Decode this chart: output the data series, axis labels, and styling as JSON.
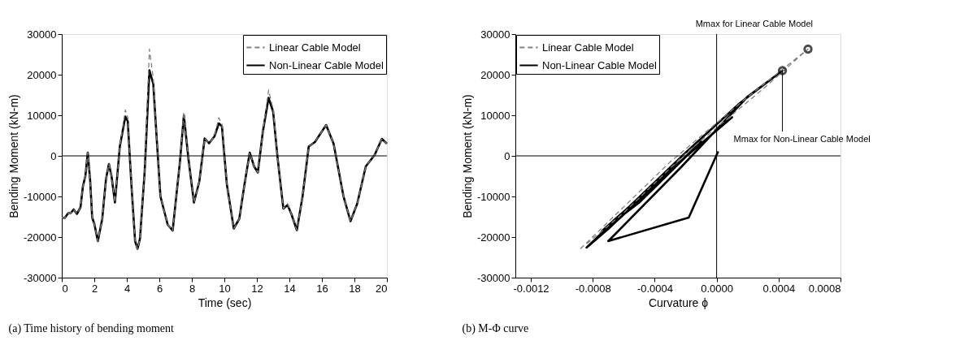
{
  "chart_data": [
    {
      "type": "line",
      "title": "(a) Time history of bending moment",
      "xlabel": "Time (sec)",
      "ylabel": "Bending Moment (kN-m)",
      "xlim": [
        0,
        20
      ],
      "xticks": [
        0,
        2,
        4,
        6,
        8,
        10,
        12,
        14,
        16,
        18,
        20
      ],
      "ylim": [
        -30000,
        30000
      ],
      "yticks": [
        -30000,
        -20000,
        -10000,
        0,
        10000,
        20000,
        30000
      ],
      "grid": false,
      "legend": "top right",
      "ref_lines": [
        {
          "axis": "y",
          "value": 0,
          "color": "#000000"
        }
      ],
      "series": [
        {
          "name": "Linear Cable Model",
          "color": "#808080",
          "line_style": "dashed",
          "x": [
            0,
            0.18,
            0.4,
            0.55,
            0.73,
            0.93,
            1.15,
            1.3,
            1.45,
            1.6,
            1.75,
            1.87,
            2.0,
            2.22,
            2.49,
            2.72,
            2.9,
            3.06,
            3.27,
            3.57,
            3.91,
            4.06,
            4.28,
            4.51,
            4.66,
            4.81,
            5.1,
            5.39,
            5.63,
            5.85,
            6.07,
            6.3,
            6.52,
            6.82,
            7.27,
            7.51,
            7.79,
            8.13,
            8.46,
            8.79,
            9.06,
            9.39,
            9.66,
            9.85,
            10.15,
            10.58,
            10.92,
            11.22,
            11.56,
            11.83,
            12.06,
            12.37,
            12.72,
            13.0,
            13.28,
            13.63,
            13.89,
            14.12,
            14.46,
            14.81,
            15.19,
            15.57,
            16.26,
            16.72,
            17.33,
            17.76,
            18.17,
            18.7,
            19.24,
            19.69,
            20.0
          ],
          "values": [
            -15200,
            -15300,
            -14100,
            -14100,
            -13200,
            -14300,
            -12700,
            -7500,
            -5000,
            800,
            -6300,
            -15200,
            -16700,
            -21000,
            -15500,
            -5700,
            -2000,
            -5000,
            -11500,
            2300,
            11300,
            9500,
            -6900,
            -21000,
            -23000,
            -20400,
            -3800,
            26300,
            19000,
            3600,
            -10000,
            -13600,
            -17000,
            -18400,
            -1400,
            10800,
            -700,
            -11500,
            -6300,
            4300,
            3100,
            4800,
            9400,
            7800,
            -6900,
            -17900,
            -15500,
            -7500,
            800,
            -2600,
            -4100,
            6000,
            16200,
            11500,
            -700,
            -13000,
            -11800,
            -14300,
            -18300,
            -10000,
            2300,
            3400,
            7600,
            3000,
            -10000,
            -16100,
            -11800,
            -2600,
            200,
            4200,
            3000
          ]
        },
        {
          "name": "Non-Linear Cable Model",
          "color": "#000000",
          "line_style": "solid",
          "x": [
            0,
            0.18,
            0.4,
            0.55,
            0.73,
            0.93,
            1.15,
            1.3,
            1.45,
            1.6,
            1.75,
            1.87,
            2.0,
            2.22,
            2.49,
            2.72,
            2.9,
            3.06,
            3.27,
            3.57,
            3.91,
            4.06,
            4.28,
            4.51,
            4.66,
            4.81,
            5.1,
            5.39,
            5.63,
            5.85,
            6.07,
            6.3,
            6.52,
            6.82,
            7.27,
            7.51,
            7.79,
            8.13,
            8.46,
            8.79,
            9.06,
            9.39,
            9.66,
            9.85,
            10.15,
            10.58,
            10.92,
            11.22,
            11.56,
            11.83,
            12.06,
            12.37,
            12.72,
            13.0,
            13.28,
            13.63,
            13.89,
            14.12,
            14.46,
            14.81,
            15.19,
            15.57,
            16.26,
            16.72,
            17.33,
            17.76,
            18.17,
            18.7,
            19.24,
            19.69,
            20.0
          ],
          "values": [
            -15200,
            -15300,
            -14100,
            -14100,
            -13200,
            -14300,
            -12700,
            -7500,
            -5000,
            800,
            -6300,
            -15200,
            -16700,
            -21000,
            -15500,
            -5700,
            -2000,
            -5000,
            -11500,
            2300,
            9700,
            8500,
            -6900,
            -21000,
            -22900,
            -20400,
            -3800,
            21100,
            17700,
            3600,
            -10000,
            -13600,
            -17000,
            -18400,
            -1400,
            10000,
            -700,
            -11500,
            -6300,
            4300,
            3100,
            4800,
            8000,
            7300,
            -6900,
            -17900,
            -15500,
            -7500,
            800,
            -2600,
            -4100,
            6000,
            14300,
            10900,
            -700,
            -13000,
            -12100,
            -14300,
            -18300,
            -10000,
            2300,
            3400,
            7600,
            3000,
            -10000,
            -16100,
            -11800,
            -2600,
            200,
            4200,
            3000
          ]
        }
      ]
    },
    {
      "type": "line",
      "title": "(b) M-Φ curve",
      "xlabel": "Curvature ϕ",
      "ylabel": "Bending Moment (kN-m)",
      "xlim": [
        -0.0013,
        0.0008
      ],
      "xticks": [
        {
          "value": -0.0012,
          "label": "-0.0012"
        },
        {
          "value": -0.0008,
          "label": "-0.0008"
        },
        {
          "value": -0.0004,
          "label": "-0.0004"
        },
        {
          "value": 0,
          "label": "0.0000"
        },
        {
          "value": 0.0004,
          "label": "0.0004"
        },
        {
          "value": 0.0008,
          "label": "0.0008"
        }
      ],
      "ylim": [
        -30000,
        30000
      ],
      "yticks": [
        -30000,
        -20000,
        -10000,
        0,
        10000,
        20000,
        30000
      ],
      "grid": false,
      "legend": "top left",
      "ref_lines": [
        {
          "axis": "x",
          "value": 0,
          "color": "#000000"
        },
        {
          "axis": "y",
          "value": 0,
          "color": "#000000"
        }
      ],
      "annotations": [
        {
          "text": "Mmax for Linear Cable Model",
          "x": 0.00059,
          "y": 26300
        },
        {
          "text": "Mmax for Non-Linear Cable Model",
          "x": 0.000425,
          "y": 21000
        }
      ],
      "series": [
        {
          "name": "Linear Cable Model",
          "color": "#808080",
          "line_style": "dashed",
          "x": [
            -0.00088,
            -0.0003,
            0.0002,
            0.00059,
            0.0003,
            -0.0002,
            -0.0006,
            -0.00085
          ],
          "values": [
            -22900,
            -1500,
            14500,
            26300,
            16500,
            600,
            -14000,
            -22000
          ]
        },
        {
          "name": "Non-Linear Cable Model",
          "color": "#000000",
          "line_style": "solid",
          "x": [
            1e-05,
            -0.00018,
            -0.0007,
            -0.00023,
            0.0002,
            0.000425,
            0.00015,
            -0.0002,
            -0.00084,
            -0.0007,
            -0.0002,
            0.0001,
            -0.0003,
            -0.00074,
            -0.0005,
            -0.0001,
            -0.00025
          ],
          "values": [
            1100,
            -15200,
            -21000,
            -2800,
            14600,
            21000,
            13000,
            800,
            -22600,
            -18000,
            -200,
            9500,
            -3500,
            -18500,
            -11500,
            3500,
            -2000
          ]
        }
      ]
    }
  ]
}
